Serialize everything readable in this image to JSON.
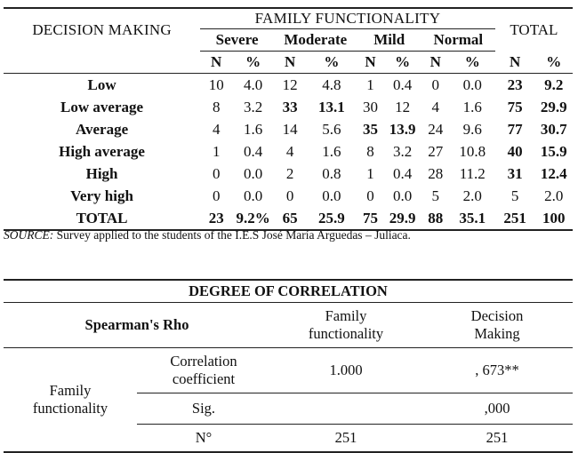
{
  "table1": {
    "stub_header": "DECISION MAKING",
    "group_header": "FAMILY FUNCTIONALITY",
    "total_header": "TOTAL",
    "categories": [
      "Severe",
      "Moderate",
      "Mild",
      "Normal"
    ],
    "sub_headers": [
      "N",
      "%",
      "N",
      "%",
      "N",
      "%",
      "N",
      "%",
      "N",
      "%"
    ],
    "rows": [
      {
        "label": "Low",
        "cells": [
          "10",
          "4.0",
          "12",
          "4.8",
          "1",
          "0.4",
          "0",
          "0.0",
          "23",
          "9.2"
        ],
        "bold": [
          false,
          false,
          false,
          false,
          false,
          false,
          false,
          false,
          true,
          true
        ]
      },
      {
        "label": "Low average",
        "cells": [
          "8",
          "3.2",
          "33",
          "13.1",
          "30",
          "12",
          "4",
          "1.6",
          "75",
          "29.9"
        ],
        "bold": [
          false,
          false,
          true,
          true,
          false,
          false,
          false,
          false,
          true,
          true
        ]
      },
      {
        "label": "Average",
        "cells": [
          "4",
          "1.6",
          "14",
          "5.6",
          "35",
          "13.9",
          "24",
          "9.6",
          "77",
          "30.7"
        ],
        "bold": [
          false,
          false,
          false,
          false,
          true,
          true,
          false,
          false,
          true,
          true
        ]
      },
      {
        "label": "High average",
        "cells": [
          "1",
          "0.4",
          "4",
          "1.6",
          "8",
          "3.2",
          "27",
          "10.8",
          "40",
          "15.9"
        ],
        "bold": [
          false,
          false,
          false,
          false,
          false,
          false,
          false,
          false,
          true,
          true
        ]
      },
      {
        "label": "High",
        "cells": [
          "0",
          "0.0",
          "2",
          "0.8",
          "1",
          "0.4",
          "28",
          "11.2",
          "31",
          "12.4"
        ],
        "bold": [
          false,
          false,
          false,
          false,
          false,
          false,
          false,
          false,
          true,
          true
        ]
      },
      {
        "label": "Very high",
        "cells": [
          "0",
          "0.0",
          "0",
          "0.0",
          "0",
          "0.0",
          "5",
          "2.0",
          "5",
          "2.0"
        ],
        "bold": [
          false,
          false,
          false,
          false,
          false,
          false,
          false,
          false,
          false,
          false
        ]
      },
      {
        "label": "TOTAL",
        "cells": [
          "23",
          "9.2%",
          "65",
          "25.9",
          "75",
          "29.9",
          "88",
          "35.1",
          "251",
          "100"
        ],
        "bold": [
          true,
          true,
          true,
          true,
          true,
          true,
          true,
          true,
          true,
          true
        ]
      }
    ]
  },
  "source": {
    "label": "SOURCE:",
    "text": " Survey applied to the students of the I.E.S José María Arguedas – Juliaca."
  },
  "table2": {
    "title": "DEGREE OF CORRELATION",
    "rho_header": "Spearman's Rho",
    "col1_header_line1": "Family",
    "col1_header_line2": "functionality",
    "col2_header_line1": "Decision",
    "col2_header_line2": "Making",
    "row_group_line1": "Family",
    "row_group_line2": "functionality",
    "rows": [
      {
        "sub_line1": "Correlation",
        "sub_line2": "coefficient",
        "v1": "1.000",
        "v2": ", 673**"
      },
      {
        "sub_line1": "Sig.",
        "sub_line2": "",
        "v1": "",
        "v2": ",000"
      },
      {
        "sub_line1": "N°",
        "sub_line2": "",
        "v1": "251",
        "v2": "251"
      }
    ]
  }
}
